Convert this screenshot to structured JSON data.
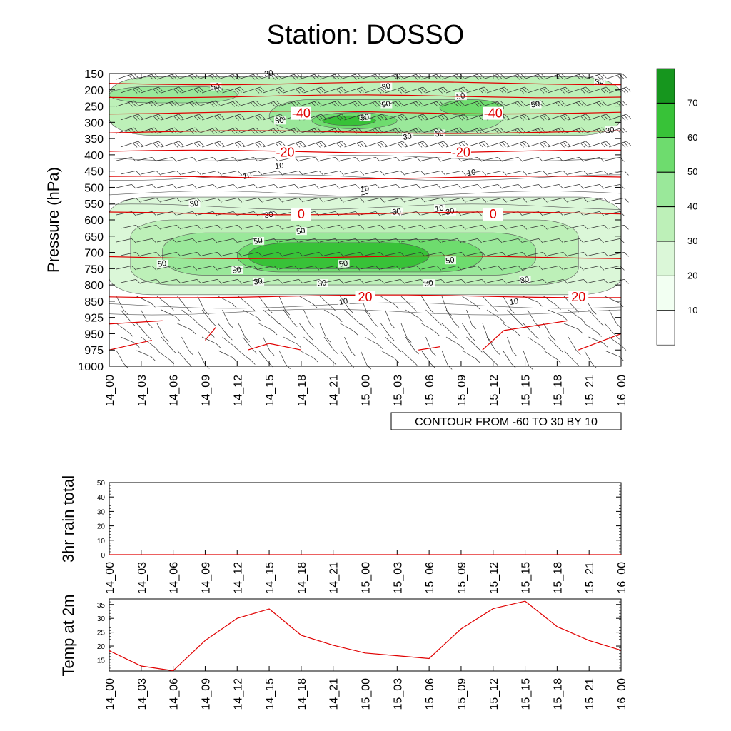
{
  "title": "Station: DOSSO",
  "colors": {
    "temperature_contour": "#e00000",
    "shade_levels": [
      "#ffffff",
      "#f2fff2",
      "#dbf7d8",
      "#bdf0b8",
      "#9ae89a",
      "#6edc6e",
      "#38c238",
      "#16961e"
    ]
  },
  "time_labels": [
    "14_00",
    "14_03",
    "14_06",
    "14_09",
    "14_12",
    "14_15",
    "14_18",
    "14_21",
    "15_00",
    "15_03",
    "15_06",
    "15_09",
    "15_12",
    "15_15",
    "15_18",
    "15_21",
    "16_00"
  ],
  "chart_data": [
    {
      "type": "heatmap",
      "name": "cross-section",
      "ylabel": "Pressure (hPa)",
      "pressure_levels": [
        150,
        200,
        250,
        300,
        350,
        400,
        450,
        500,
        550,
        600,
        650,
        700,
        750,
        800,
        850,
        925,
        950,
        975,
        1000
      ],
      "colorbar": {
        "levels": [
          10,
          20,
          30,
          40,
          50,
          60,
          70
        ],
        "labels": [
          "10",
          "20",
          "30",
          "40",
          "50",
          "60",
          "70"
        ]
      },
      "contour_info": "CONTOUR FROM -60 TO 30 BY 10",
      "temperature_contours": [
        {
          "label": "-40",
          "pressure": 270
        },
        {
          "label": "-20",
          "pressure": 390
        },
        {
          "label": "0",
          "pressure": 580
        },
        {
          "label": "20",
          "pressure": 835
        }
      ],
      "humidity_labels": [
        "30",
        "30",
        "30",
        "50",
        "50",
        "50",
        "50",
        "50",
        "50",
        "30",
        "30",
        "30",
        "10",
        "10",
        "10",
        "10",
        "10",
        "10",
        "30",
        "30",
        "30",
        "30",
        "50",
        "50",
        "50",
        "50",
        "50",
        "50",
        "30",
        "30",
        "30",
        "30",
        "10",
        "10"
      ],
      "regions": [
        {
          "level": 3,
          "t0": 0,
          "t1": 48,
          "p0": 160,
          "p1": 340
        },
        {
          "level": 4,
          "t0": 0,
          "t1": 12,
          "p0": 190,
          "p1": 240
        },
        {
          "level": 4,
          "t0": 15,
          "t1": 37,
          "p0": 230,
          "p1": 330
        },
        {
          "level": 5,
          "t0": 19,
          "t1": 27,
          "p0": 270,
          "p1": 320
        },
        {
          "level": 6,
          "t0": 20,
          "t1": 25,
          "p0": 280,
          "p1": 310
        },
        {
          "level": 5,
          "t0": 31,
          "t1": 37,
          "p0": 230,
          "p1": 280
        },
        {
          "level": 2,
          "t0": 0,
          "t1": 48,
          "p0": 530,
          "p1": 830
        },
        {
          "level": 3,
          "t0": 2,
          "t1": 44,
          "p0": 600,
          "p1": 800
        },
        {
          "level": 4,
          "t0": 5,
          "t1": 40,
          "p0": 640,
          "p1": 770
        },
        {
          "level": 5,
          "t0": 12,
          "t1": 35,
          "p0": 660,
          "p1": 760
        },
        {
          "level": 6,
          "t0": 13,
          "t1": 30,
          "p0": 670,
          "p1": 750
        }
      ]
    },
    {
      "type": "line",
      "name": "rain",
      "ylabel": "3hr rain total",
      "ylim": [
        0,
        50
      ],
      "yticks": [
        "0",
        "10",
        "20",
        "30",
        "40",
        "50"
      ],
      "x": [
        0,
        3,
        6,
        9,
        12,
        15,
        18,
        21,
        24,
        27,
        30,
        33,
        36,
        39,
        42,
        45,
        48
      ],
      "values": [
        0,
        0,
        0,
        0,
        0,
        0,
        0,
        0,
        0,
        0,
        0,
        0,
        0,
        0,
        0,
        0,
        0
      ]
    },
    {
      "type": "line",
      "name": "temperature",
      "ylabel": "Temp at 2m",
      "ylim": [
        11,
        37
      ],
      "yticks": [
        "15",
        "20",
        "25",
        "30",
        "35"
      ],
      "x": [
        0,
        3,
        6,
        9,
        12,
        15,
        18,
        21,
        24,
        27,
        30,
        33,
        36,
        39,
        42,
        45,
        48
      ],
      "values": [
        18.3,
        12.8,
        11.1,
        22.0,
        30.0,
        33.4,
        23.9,
        20.3,
        17.5,
        16.5,
        15.5,
        26.2,
        33.5,
        36.2,
        27.0,
        22.0,
        18.5
      ]
    }
  ]
}
